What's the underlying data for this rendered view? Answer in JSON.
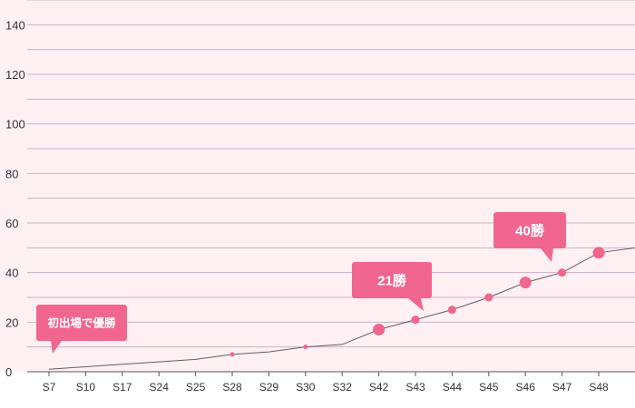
{
  "chart_data": {
    "type": "line",
    "title": "",
    "xlabel": "",
    "ylabel": "",
    "categories": [
      "S7",
      "S10",
      "S17",
      "S24",
      "S25",
      "S28",
      "S29",
      "S30",
      "S32",
      "S42",
      "S43",
      "S44",
      "S45",
      "S46",
      "S47",
      "S48"
    ],
    "values": [
      1,
      2,
      3,
      4,
      5,
      7,
      8,
      10,
      11,
      17,
      21,
      25,
      30,
      36,
      40,
      48
    ],
    "extra_point_value": 50,
    "ylim": [
      0,
      150
    ],
    "yticks": [
      0,
      20,
      40,
      60,
      80,
      100,
      120,
      140
    ],
    "grid": true,
    "marked_points": [
      {
        "category": "S28",
        "value": 7,
        "size": "small"
      },
      {
        "category": "S30",
        "value": 10,
        "size": "small"
      },
      {
        "category": "S42",
        "value": 17,
        "size": "large"
      },
      {
        "category": "S43",
        "value": 21,
        "size": "medium"
      },
      {
        "category": "S44",
        "value": 25,
        "size": "medium"
      },
      {
        "category": "S45",
        "value": 30,
        "size": "medium"
      },
      {
        "category": "S46",
        "value": 36,
        "size": "large"
      },
      {
        "category": "S47",
        "value": 40,
        "size": "medium"
      },
      {
        "category": "S48",
        "value": 48,
        "size": "large"
      }
    ],
    "annotations": [
      {
        "text": "初出場で優勝",
        "category": "S7",
        "value": 1
      },
      {
        "text": "21勝",
        "category": "S43",
        "value": 21
      },
      {
        "text": "40勝",
        "category": "S47",
        "value": 40
      }
    ]
  },
  "colors": {
    "background": "#fff0f4",
    "grid": "#c9b3c3",
    "line": "#6b5b63",
    "marker": "#f0668f",
    "callout": "#f0668f",
    "axis": "#555555"
  }
}
